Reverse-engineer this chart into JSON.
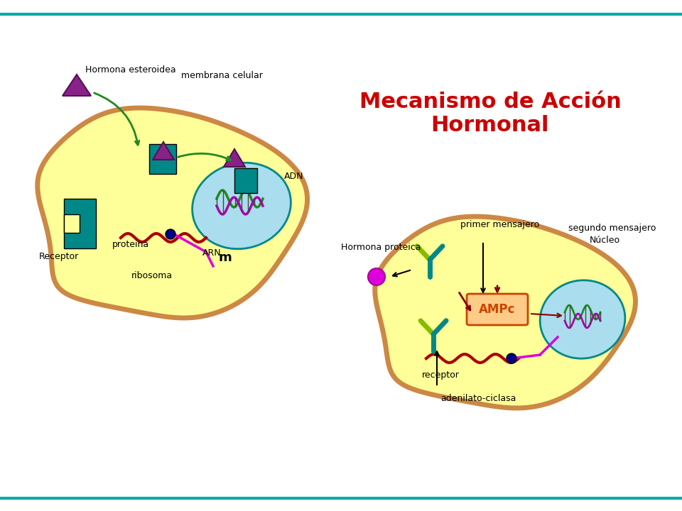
{
  "title": "Mecanismo de Acción\nHormonal",
  "title_color": "#CC0000",
  "title_fontsize": 22,
  "bg_color": "#FFFFFF",
  "border_top_color": "#00AAAA",
  "border_bottom_color": "#00AAAA",
  "cell1_fill": "#FFFF99",
  "cell1_border": "#CC8844",
  "cell2_fill": "#FFFF99",
  "cell2_border": "#CC8844",
  "nucleus1_fill": "#AADDEE",
  "nucleus2_fill": "#AADDEE",
  "teal_color": "#008888",
  "purple_color": "#882288",
  "green_color": "#228822",
  "dark_red_color": "#882222",
  "magenta_color": "#DD00DD",
  "dark_blue_color": "#000088",
  "lime_color": "#88CC00",
  "labels": {
    "hormona_estero": "Hormona esteroidea",
    "membrana": "membrana celular",
    "receptor1": "Receptor",
    "proteina": "proteina",
    "arn": "ARN",
    "arn_m": "m",
    "ribosoma": "ribosoma",
    "adn": "ADN",
    "hormona_prot": "Hormona proteica",
    "primer_mens": "primer mensajero",
    "segundo_mens": "segundo mensajero",
    "nucleo": "Núcleo",
    "ampc": "AMPc",
    "receptor2": "receptor",
    "adenilato": "adenilato-ciclasa"
  }
}
